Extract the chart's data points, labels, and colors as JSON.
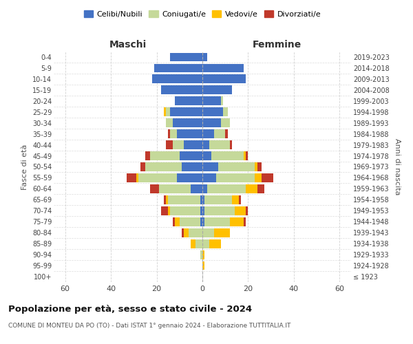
{
  "age_groups": [
    "100+",
    "95-99",
    "90-94",
    "85-89",
    "80-84",
    "75-79",
    "70-74",
    "65-69",
    "60-64",
    "55-59",
    "50-54",
    "45-49",
    "40-44",
    "35-39",
    "30-34",
    "25-29",
    "20-24",
    "15-19",
    "10-14",
    "5-9",
    "0-4"
  ],
  "birth_years": [
    "≤ 1923",
    "1924-1928",
    "1929-1933",
    "1934-1938",
    "1939-1943",
    "1944-1948",
    "1949-1953",
    "1954-1958",
    "1959-1963",
    "1964-1968",
    "1969-1973",
    "1974-1978",
    "1979-1983",
    "1984-1988",
    "1989-1993",
    "1994-1998",
    "1999-2003",
    "2004-2008",
    "2009-2013",
    "2014-2018",
    "2019-2023"
  ],
  "maschi": {
    "celibi": [
      0,
      0,
      0,
      0,
      0,
      1,
      1,
      1,
      5,
      11,
      9,
      10,
      8,
      11,
      13,
      14,
      12,
      18,
      22,
      21,
      14
    ],
    "coniugati": [
      0,
      0,
      1,
      3,
      6,
      9,
      13,
      14,
      14,
      17,
      16,
      13,
      5,
      3,
      3,
      2,
      0,
      0,
      0,
      0,
      0
    ],
    "vedovi": [
      0,
      0,
      0,
      2,
      2,
      2,
      1,
      1,
      0,
      1,
      0,
      0,
      0,
      0,
      0,
      1,
      0,
      0,
      0,
      0,
      0
    ],
    "divorziati": [
      0,
      0,
      0,
      0,
      1,
      1,
      3,
      1,
      4,
      4,
      2,
      2,
      3,
      1,
      0,
      0,
      0,
      0,
      0,
      0,
      0
    ]
  },
  "femmine": {
    "nubili": [
      0,
      0,
      0,
      0,
      0,
      1,
      1,
      1,
      2,
      6,
      7,
      4,
      3,
      5,
      8,
      9,
      8,
      13,
      19,
      18,
      2
    ],
    "coniugate": [
      0,
      0,
      0,
      3,
      5,
      11,
      13,
      12,
      17,
      17,
      16,
      14,
      9,
      5,
      4,
      2,
      1,
      0,
      0,
      0,
      0
    ],
    "vedove": [
      0,
      1,
      1,
      5,
      7,
      6,
      5,
      3,
      5,
      3,
      1,
      1,
      0,
      0,
      0,
      0,
      0,
      0,
      0,
      0,
      0
    ],
    "divorziate": [
      0,
      0,
      0,
      0,
      0,
      1,
      1,
      1,
      3,
      5,
      2,
      1,
      1,
      1,
      0,
      0,
      0,
      0,
      0,
      0,
      0
    ]
  },
  "colors": {
    "celibi": "#4472c4",
    "coniugati": "#c5d99a",
    "vedovi": "#ffc000",
    "divorziati": "#c0392b"
  },
  "xlim": 65,
  "title": "Popolazione per età, sesso e stato civile - 2024",
  "subtitle": "COMUNE DI MONTEU DA PO (TO) - Dati ISTAT 1° gennaio 2024 - Elaborazione TUTTITALIA.IT",
  "ylabel_left": "Fasce di età",
  "ylabel_right": "Anni di nascita",
  "xlabel_maschi": "Maschi",
  "xlabel_femmine": "Femmine",
  "bg_color": "#ffffff",
  "grid_color": "#cccccc"
}
